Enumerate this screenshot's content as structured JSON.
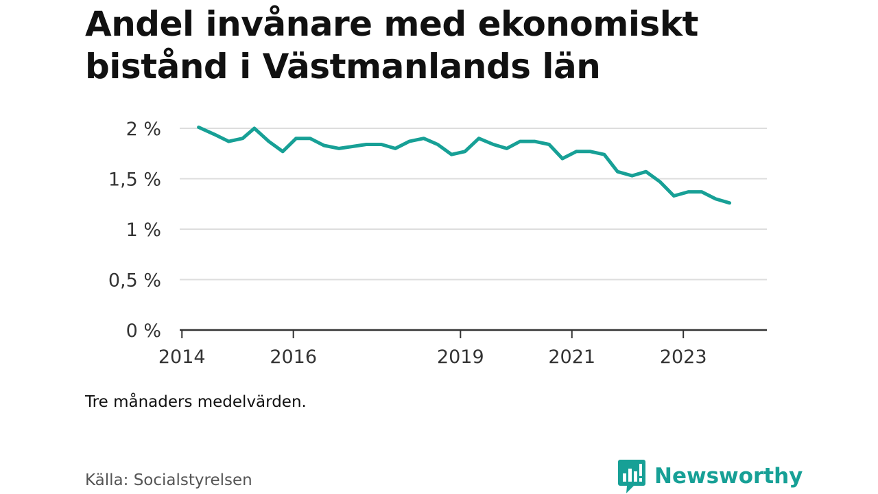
{
  "header": {
    "title": "Andel invånare med ekonomiskt bistånd i Västmanlands län"
  },
  "footer": {
    "note": "Tre månaders medelvärden.",
    "source": "Källa: Socialstyrelsen",
    "brand": "Newsworthy"
  },
  "colors": {
    "line": "#17a096",
    "grid": "#dddddd",
    "axis": "#333333",
    "brand": "#17a096"
  },
  "chart_data": {
    "type": "line",
    "title": "Andel invånare med ekonomiskt bistånd i Västmanlands län",
    "xlabel": "",
    "ylabel": "",
    "ylim": [
      0,
      2.2
    ],
    "xlim": [
      2013.96,
      2024.5
    ],
    "y_ticks": [
      {
        "value": 0,
        "label": "0 %"
      },
      {
        "value": 0.5,
        "label": "0,5 %"
      },
      {
        "value": 1,
        "label": "1 %"
      },
      {
        "value": 1.5,
        "label": "1,5 %"
      },
      {
        "value": 2,
        "label": "2 %"
      }
    ],
    "x_ticks": [
      {
        "value": 2014,
        "label": "2014"
      },
      {
        "value": 2016,
        "label": "2016"
      },
      {
        "value": 2019,
        "label": "2019"
      },
      {
        "value": 2021,
        "label": "2021"
      },
      {
        "value": 2023,
        "label": "2023"
      }
    ],
    "grid": true,
    "legend": "none",
    "series": [
      {
        "x": [
          2014.3,
          2014.58,
          2014.84,
          2015.09,
          2015.3,
          2015.56,
          2015.81,
          2016.05,
          2016.3,
          2016.55,
          2016.82,
          2017.06,
          2017.31,
          2017.58,
          2017.83,
          2018.08,
          2018.34,
          2018.59,
          2018.84,
          2019.08,
          2019.33,
          2019.59,
          2019.83,
          2020.07,
          2020.33,
          2020.59,
          2020.83,
          2021.08,
          2021.33,
          2021.58,
          2021.82,
          2022.08,
          2022.33,
          2022.58,
          2022.83,
          2023.09,
          2023.33,
          2023.58,
          2023.83
        ],
        "values": [
          2.01,
          1.94,
          1.87,
          1.9,
          2.0,
          1.87,
          1.77,
          1.9,
          1.9,
          1.83,
          1.8,
          1.82,
          1.84,
          1.84,
          1.8,
          1.87,
          1.9,
          1.84,
          1.74,
          1.77,
          1.9,
          1.84,
          1.8,
          1.87,
          1.87,
          1.84,
          1.7,
          1.77,
          1.77,
          1.74,
          1.57,
          1.53,
          1.57,
          1.47,
          1.33,
          1.37,
          1.37,
          1.3,
          1.26
        ]
      }
    ]
  }
}
